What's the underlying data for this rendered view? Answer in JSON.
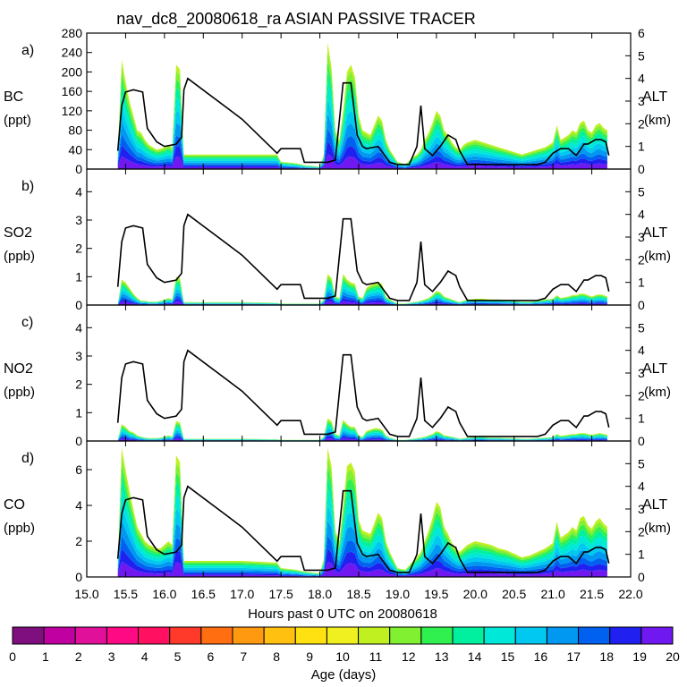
{
  "title": "nav_dc8_20080618_ra ASIAN PASSIVE TRACER",
  "xlabel": "Hours past 0 UTC on 20080618",
  "x_ticks": [
    "15.0",
    "15.5",
    "16.0",
    "16.5",
    "17.0",
    "17.5",
    "18.0",
    "18.5",
    "19.0",
    "19.5",
    "20.0",
    "20.5",
    "21.0",
    "21.5",
    "22.0"
  ],
  "xlim": [
    15.0,
    22.0
  ],
  "colorbar": {
    "label": "Age (days)",
    "ticks": [
      "0",
      "1",
      "2",
      "3",
      "4",
      "5",
      "6",
      "7",
      "8",
      "9",
      "10",
      "11",
      "12",
      "13",
      "14",
      "15",
      "16",
      "17",
      "18",
      "19",
      "20"
    ],
    "colors": [
      "#7f0f7f",
      "#c000a0",
      "#e0109a",
      "#ff0a84",
      "#ff1060",
      "#ff3a2a",
      "#ff6e10",
      "#ff9a10",
      "#ffc010",
      "#ffe010",
      "#f0f020",
      "#c0f020",
      "#80f030",
      "#30f050",
      "#00f0a0",
      "#00e8d8",
      "#00c8f0",
      "#0098f0",
      "#0060f0",
      "#2020f0",
      "#7018f0"
    ]
  },
  "panels": [
    {
      "letter": "a)",
      "species": "BC",
      "unit": "(ppt)",
      "yticks": [
        "0",
        "40",
        "80",
        "120",
        "160",
        "200",
        "240",
        "280"
      ],
      "ylim": [
        0,
        280
      ],
      "alt_label": "ALT",
      "alt_unit": "(km)",
      "alt_ticks": [
        "0",
        "1",
        "2",
        "3",
        "4",
        "5",
        "6"
      ],
      "alt_lim": [
        0,
        6
      ]
    },
    {
      "letter": "b)",
      "species": "SO2",
      "unit": "(ppb)",
      "yticks": [
        "0",
        "1",
        "2",
        "3",
        "4"
      ],
      "ylim": [
        0,
        4.8
      ],
      "alt_label": "ALT",
      "alt_unit": "(km)",
      "alt_ticks": [
        "0",
        "1",
        "2",
        "3",
        "4",
        "5"
      ],
      "alt_lim": [
        0,
        6
      ]
    },
    {
      "letter": "c)",
      "species": "NO2",
      "unit": "(ppb)",
      "yticks": [
        "0",
        "1",
        "2",
        "3",
        "4"
      ],
      "ylim": [
        0,
        4.8
      ],
      "alt_label": "ALT",
      "alt_unit": "(km)",
      "alt_ticks": [
        "0",
        "1",
        "2",
        "3",
        "4",
        "5"
      ],
      "alt_lim": [
        0,
        6
      ]
    },
    {
      "letter": "d)",
      "species": "CO",
      "unit": "(ppb)",
      "yticks": [
        "0",
        "2",
        "4",
        "6"
      ],
      "ylim": [
        0,
        7.6
      ],
      "alt_label": "ALT",
      "alt_unit": "(km)",
      "alt_ticks": [
        "0",
        "1",
        "2",
        "3",
        "4",
        "5"
      ],
      "alt_lim": [
        0,
        6
      ]
    }
  ],
  "chart_data": {
    "type": "area",
    "altitude_km": {
      "x": [
        15.4,
        15.45,
        15.5,
        15.6,
        15.72,
        15.78,
        15.9,
        16.0,
        16.15,
        16.22,
        16.25,
        16.3,
        17.0,
        17.45,
        17.5,
        17.6,
        17.75,
        17.8,
        18.1,
        18.2,
        18.3,
        18.4,
        18.48,
        18.55,
        18.6,
        18.75,
        18.9,
        19.0,
        19.15,
        19.25,
        19.3,
        19.35,
        19.45,
        19.55,
        19.65,
        19.75,
        19.8,
        19.9,
        20.0,
        20.5,
        20.8,
        20.9,
        21.0,
        21.1,
        21.2,
        21.3,
        21.4,
        21.45,
        21.55,
        21.62,
        21.68,
        21.72
      ],
      "y": [
        0.8,
        2.8,
        3.4,
        3.5,
        3.4,
        1.8,
        1.2,
        1.0,
        1.1,
        1.4,
        3.5,
        4.0,
        2.2,
        0.7,
        0.9,
        0.9,
        0.9,
        0.3,
        0.3,
        0.4,
        3.8,
        3.8,
        1.5,
        1.0,
        0.9,
        1.0,
        0.3,
        0.2,
        0.2,
        1.0,
        2.8,
        0.9,
        0.6,
        1.0,
        1.5,
        1.3,
        0.8,
        0.2,
        0.2,
        0.2,
        0.2,
        0.3,
        0.7,
        0.9,
        0.9,
        0.6,
        1.1,
        1.1,
        1.3,
        1.3,
        1.2,
        0.6
      ]
    },
    "tracer_total": {
      "x": [
        15.4,
        15.45,
        15.5,
        15.55,
        15.6,
        15.65,
        15.7,
        15.75,
        15.8,
        15.85,
        15.9,
        15.95,
        16.0,
        16.05,
        16.1,
        16.15,
        16.2,
        16.25,
        16.3,
        17.0,
        17.45,
        17.5,
        17.7,
        17.75,
        17.8,
        18.0,
        18.05,
        18.1,
        18.15,
        18.2,
        18.25,
        18.3,
        18.35,
        18.4,
        18.45,
        18.5,
        18.55,
        18.6,
        18.65,
        18.7,
        18.75,
        18.8,
        18.85,
        18.9,
        19.0,
        19.1,
        19.2,
        19.25,
        19.3,
        19.35,
        19.4,
        19.45,
        19.5,
        19.55,
        19.6,
        19.65,
        19.7,
        19.75,
        19.8,
        19.85,
        19.9,
        20.0,
        20.1,
        20.2,
        20.3,
        20.4,
        20.5,
        20.6,
        20.7,
        20.8,
        20.9,
        21.0,
        21.05,
        21.1,
        21.2,
        21.25,
        21.3,
        21.35,
        21.4,
        21.45,
        21.5,
        21.55,
        21.6,
        21.65,
        21.7
      ],
      "BC": [
        40,
        225,
        180,
        140,
        110,
        80,
        75,
        60,
        50,
        45,
        40,
        42,
        45,
        50,
        45,
        215,
        205,
        30,
        30,
        30,
        30,
        15,
        12,
        10,
        8,
        5,
        30,
        260,
        210,
        80,
        60,
        120,
        200,
        215,
        190,
        110,
        80,
        75,
        70,
        90,
        110,
        100,
        60,
        40,
        15,
        10,
        25,
        30,
        40,
        60,
        75,
        95,
        120,
        110,
        80,
        70,
        55,
        45,
        40,
        50,
        55,
        60,
        55,
        50,
        45,
        40,
        35,
        30,
        35,
        40,
        45,
        55,
        90,
        60,
        70,
        80,
        75,
        95,
        100,
        80,
        75,
        90,
        95,
        85,
        80
      ],
      "SO2": [
        0.05,
        0.9,
        0.8,
        0.6,
        0.4,
        0.25,
        0.15,
        0.15,
        0.12,
        0.12,
        0.12,
        0.15,
        0.2,
        0.25,
        0.2,
        1.0,
        0.95,
        0.1,
        0.1,
        0.1,
        0.08,
        0.05,
        0.05,
        0.05,
        0.05,
        0.05,
        0.2,
        1.1,
        0.95,
        0.3,
        0.25,
        1.1,
        0.9,
        0.8,
        0.75,
        0.3,
        0.25,
        0.6,
        0.7,
        0.75,
        0.8,
        0.75,
        0.3,
        0.2,
        0.05,
        0.05,
        0.1,
        0.12,
        0.15,
        0.2,
        0.25,
        0.35,
        0.5,
        0.45,
        0.3,
        0.25,
        0.2,
        0.15,
        0.1,
        0.15,
        0.2,
        0.22,
        0.22,
        0.2,
        0.2,
        0.18,
        0.15,
        0.12,
        0.12,
        0.15,
        0.2,
        0.22,
        0.35,
        0.25,
        0.3,
        0.35,
        0.35,
        0.4,
        0.4,
        0.35,
        0.3,
        0.35,
        0.38,
        0.35,
        0.3
      ],
      "NO2": [
        0.05,
        0.6,
        0.5,
        0.35,
        0.3,
        0.2,
        0.15,
        0.12,
        0.1,
        0.1,
        0.1,
        0.12,
        0.15,
        0.2,
        0.15,
        0.7,
        0.65,
        0.08,
        0.08,
        0.08,
        0.06,
        0.04,
        0.04,
        0.04,
        0.04,
        0.04,
        0.15,
        0.8,
        0.7,
        0.25,
        0.2,
        0.75,
        0.6,
        0.5,
        0.5,
        0.2,
        0.15,
        0.35,
        0.4,
        0.45,
        0.45,
        0.4,
        0.2,
        0.12,
        0.04,
        0.04,
        0.08,
        0.1,
        0.12,
        0.15,
        0.2,
        0.25,
        0.35,
        0.3,
        0.2,
        0.18,
        0.15,
        0.12,
        0.08,
        0.1,
        0.12,
        0.14,
        0.14,
        0.12,
        0.12,
        0.1,
        0.1,
        0.08,
        0.08,
        0.1,
        0.12,
        0.14,
        0.25,
        0.18,
        0.22,
        0.25,
        0.25,
        0.28,
        0.28,
        0.25,
        0.22,
        0.25,
        0.28,
        0.25,
        0.22
      ],
      "CO": [
        1.0,
        7.2,
        6.0,
        4.8,
        3.8,
        2.8,
        2.4,
        2.0,
        1.8,
        1.7,
        1.6,
        1.6,
        1.8,
        2.0,
        1.8,
        6.8,
        6.4,
        0.9,
        0.9,
        0.9,
        0.8,
        0.5,
        0.4,
        0.35,
        0.3,
        0.2,
        1.0,
        7.2,
        6.2,
        2.6,
        2.0,
        4.0,
        6.2,
        6.4,
        5.9,
        3.2,
        2.6,
        2.5,
        2.4,
        3.0,
        3.6,
        3.3,
        2.0,
        1.4,
        0.5,
        0.4,
        0.9,
        1.1,
        1.4,
        2.0,
        2.6,
        3.3,
        4.2,
        3.9,
        2.8,
        2.4,
        1.9,
        1.6,
        1.4,
        1.6,
        1.8,
        2.0,
        1.9,
        1.8,
        1.6,
        1.5,
        1.3,
        1.1,
        1.2,
        1.4,
        1.6,
        1.9,
        3.1,
        2.2,
        2.5,
        2.8,
        2.6,
        3.3,
        3.4,
        2.9,
        2.7,
        3.1,
        3.3,
        3.0,
        2.8
      ]
    },
    "age_mix_note_colors_used": [
      "#7018f0",
      "#2020f0",
      "#0060f0",
      "#0098f0",
      "#00c8f0",
      "#00e8d8",
      "#00f0a0",
      "#30f050",
      "#80f030",
      "#c0f020"
    ],
    "age_mix_fractions": [
      0.12,
      0.1,
      0.1,
      0.12,
      0.12,
      0.12,
      0.1,
      0.08,
      0.08,
      0.06
    ]
  }
}
